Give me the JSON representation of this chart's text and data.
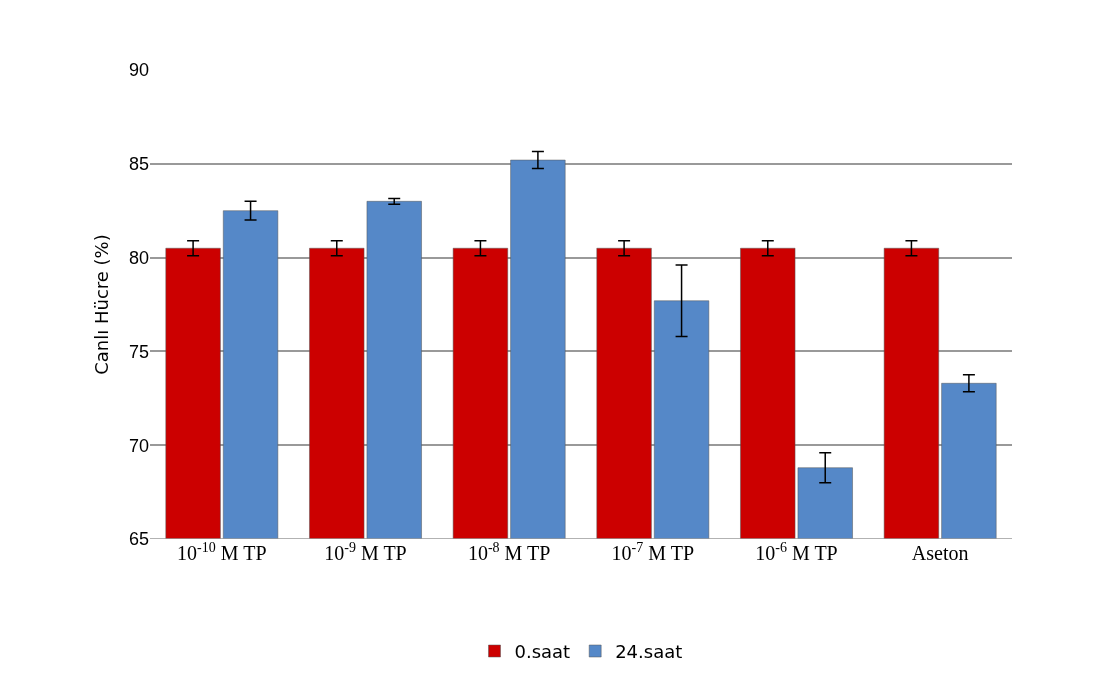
{
  "chart_data": {
    "type": "bar",
    "ylabel": "Canlı Hücre (%)",
    "categories": [
      "10$^{-10}$ M TP",
      "10$^{-9}$ M TP",
      "10$^{-8}$ M TP",
      "10$^{-7}$ M TP",
      "10$^{-6}$ M TP",
      "Aseton"
    ],
    "series": [
      {
        "name": "0.saat",
        "color": "#cc0000",
        "values": [
          80.5,
          80.5,
          80.5,
          80.5,
          80.5,
          80.5
        ],
        "errors": [
          0.4,
          0.4,
          0.4,
          0.4,
          0.4,
          0.4
        ]
      },
      {
        "name": "24.saat",
        "color": "#5588c8",
        "values": [
          82.5,
          83.0,
          85.2,
          77.7,
          68.8,
          73.3
        ],
        "errors": [
          0.5,
          0.15,
          0.45,
          1.9,
          0.8,
          0.45
        ]
      }
    ],
    "ylim": [
      65,
      90
    ],
    "yticks": [
      65,
      70,
      75,
      80,
      85,
      90
    ],
    "grid": "y",
    "legend": "bottom"
  }
}
